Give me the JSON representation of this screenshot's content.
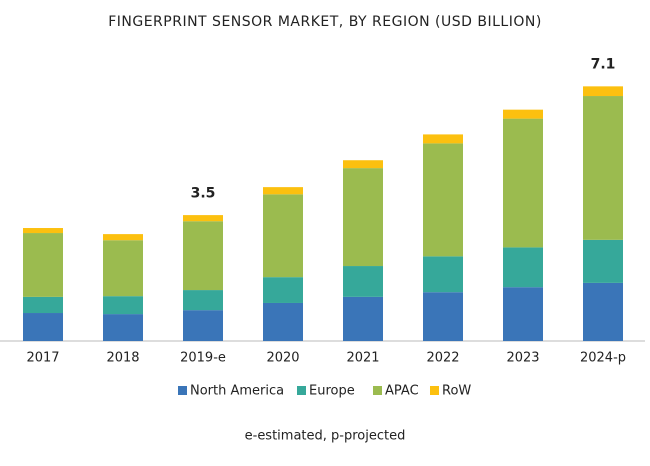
{
  "chart_data": {
    "type": "stacked_bar",
    "title": "FINGERPRINT SENSOR MARKET, BY REGION (USD BILLION)",
    "categories": [
      "2017",
      "2018",
      "2019-e",
      "2020",
      "2021",
      "2022",
      "2023",
      "2024-p"
    ],
    "series": [
      {
        "name": "North America",
        "color": "#3a75b8",
        "values": [
          0.78,
          0.75,
          0.86,
          1.06,
          1.23,
          1.36,
          1.5,
          1.62
        ]
      },
      {
        "name": "Europe",
        "color": "#36a89a",
        "values": [
          0.45,
          0.5,
          0.56,
          0.72,
          0.86,
          1.0,
          1.11,
          1.2
        ]
      },
      {
        "name": "APAC",
        "color": "#9bbb4f",
        "values": [
          1.78,
          1.56,
          1.92,
          2.31,
          2.73,
          3.15,
          3.59,
          4.01
        ]
      },
      {
        "name": "RoW",
        "color": "#fcc00f",
        "values": [
          0.14,
          0.17,
          0.17,
          0.2,
          0.22,
          0.25,
          0.25,
          0.27
        ]
      }
    ],
    "totals": [
      null,
      null,
      3.5,
      null,
      null,
      null,
      null,
      7.1
    ],
    "ylim": [
      0,
      7.5
    ],
    "note": "e-estimated, p-projected"
  }
}
